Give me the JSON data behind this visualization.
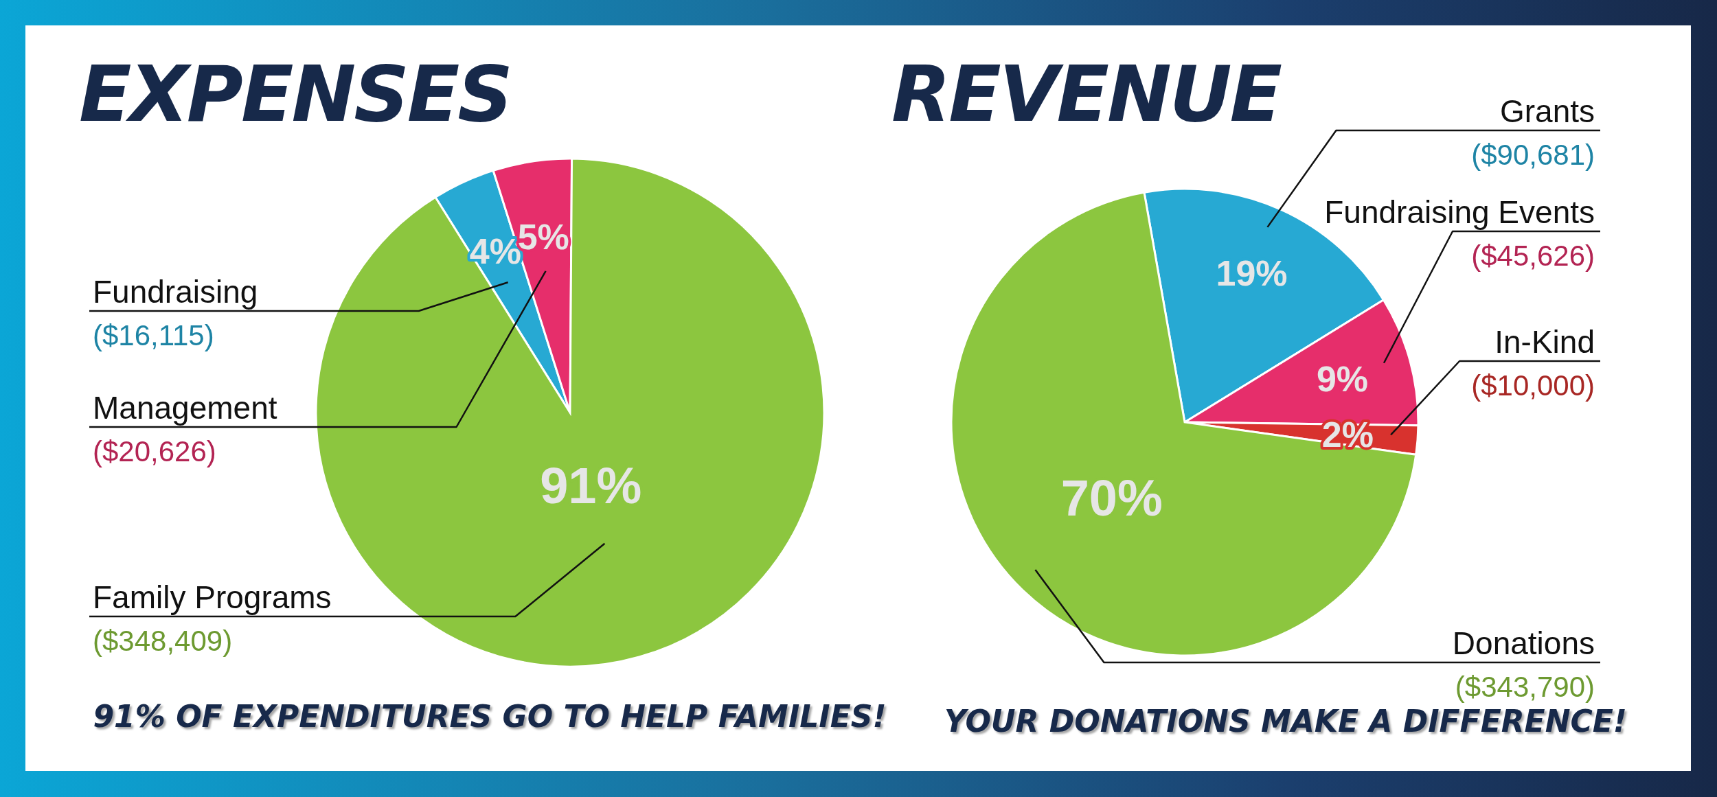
{
  "chart_data": [
    {
      "type": "pie",
      "title": "EXPENSES",
      "categories": [
        "Fundraising",
        "Management",
        "Family Programs"
      ],
      "values": [
        4,
        5,
        91
      ],
      "colors": [
        "#27a9d3",
        "#e62e6b",
        "#8cc63f"
      ],
      "value_labels": [
        "4%",
        "5%",
        "91%"
      ],
      "annotations": [
        {
          "text": "($16,115)",
          "x": "Fundraising"
        },
        {
          "text": "($20,626)",
          "x": "Management"
        },
        {
          "text": "($348,409)",
          "x": "Family Programs"
        },
        "91% OF EXPENDITURES GO TO HELP FAMILIES!"
      ]
    },
    {
      "type": "pie",
      "title": "REVENUE",
      "categories": [
        "Grants",
        "Fundraising Events",
        "In-Kind",
        "Donations"
      ],
      "values": [
        19,
        9,
        2,
        70
      ],
      "colors": [
        "#27a9d3",
        "#e62e6b",
        "#d8322e",
        "#8cc63f"
      ],
      "value_labels": [
        "19%",
        "9%",
        "2%",
        "70%"
      ],
      "annotations": [
        {
          "text": "($90,681)",
          "x": "Grants"
        },
        {
          "text": "($45,626)",
          "x": "Fundraising Events"
        },
        {
          "text": "($10,000)",
          "x": "In-Kind"
        },
        {
          "text": "($343,790)",
          "x": "Donations"
        },
        "YOUR DONATIONS MAKE A DIFFERENCE!"
      ]
    }
  ]
}
